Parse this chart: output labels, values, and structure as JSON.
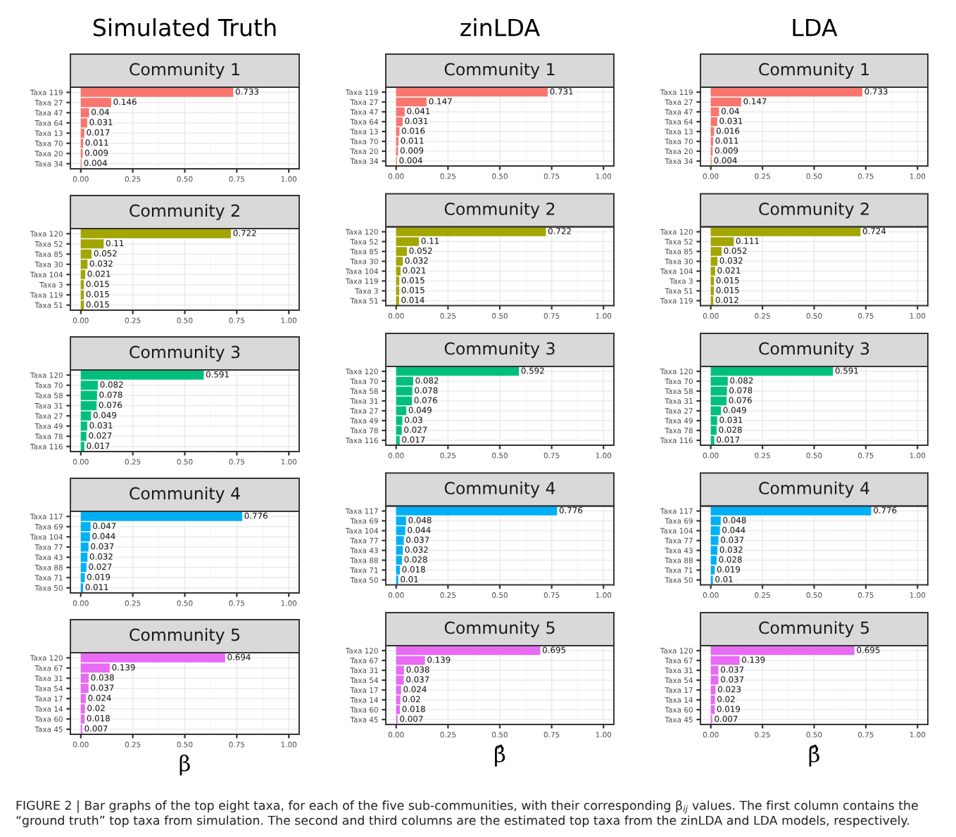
{
  "chart_data": [
    {
      "type": "bar",
      "orientation": "horizontal",
      "subtitle": "Simulated Truth",
      "title": "Community 1",
      "categories": [
        "Taxa 119",
        "Taxa 27",
        "Taxa 47",
        "Taxa 64",
        "Taxa 13",
        "Taxa 70",
        "Taxa 20",
        "Taxa 34"
      ],
      "values": [
        0.733,
        0.146,
        0.04,
        0.031,
        0.017,
        0.011,
        0.009,
        0.004
      ],
      "color": "#f8766d",
      "data_labels": true,
      "xlim": [
        -0.05,
        1.05
      ],
      "xticks": [
        {
          "value": 0,
          "label": "0.00"
        },
        {
          "value": 0.25,
          "label": "0.25"
        },
        {
          "value": 0.5,
          "label": "0.50"
        },
        {
          "value": 0.75,
          "label": "0.75"
        },
        {
          "value": 1,
          "label": "1.00"
        }
      ],
      "grid": true
    },
    {
      "type": "bar",
      "orientation": "horizontal",
      "subtitle": "zinLDA",
      "title": "Community 1",
      "categories": [
        "Taxa 119",
        "Taxa 27",
        "Taxa 47",
        "Taxa 64",
        "Taxa 13",
        "Taxa 70",
        "Taxa 20",
        "Taxa 34"
      ],
      "values": [
        0.731,
        0.147,
        0.041,
        0.031,
        0.016,
        0.011,
        0.009,
        0.004
      ],
      "color": "#f8766d",
      "data_labels": true,
      "xlim": [
        -0.05,
        1.05
      ],
      "xticks": [
        {
          "value": 0,
          "label": "0.00"
        },
        {
          "value": 0.25,
          "label": "0.25"
        },
        {
          "value": 0.5,
          "label": "0.50"
        },
        {
          "value": 0.75,
          "label": "0.75"
        },
        {
          "value": 1,
          "label": "1.00"
        }
      ],
      "grid": true
    },
    {
      "type": "bar",
      "orientation": "horizontal",
      "subtitle": "LDA",
      "title": "Community 1",
      "categories": [
        "Taxa 119",
        "Taxa 27",
        "Taxa 47",
        "Taxa 64",
        "Taxa 13",
        "Taxa 70",
        "Taxa 20",
        "Taxa 34"
      ],
      "values": [
        0.733,
        0.147,
        0.04,
        0.031,
        0.016,
        0.011,
        0.009,
        0.004
      ],
      "color": "#f8766d",
      "data_labels": true,
      "xlim": [
        -0.05,
        1.05
      ],
      "xticks": [
        {
          "value": 0,
          "label": "0.00"
        },
        {
          "value": 0.25,
          "label": "0.25"
        },
        {
          "value": 0.5,
          "label": "0.50"
        },
        {
          "value": 0.75,
          "label": "0.75"
        },
        {
          "value": 1,
          "label": "1.00"
        }
      ],
      "grid": true
    },
    {
      "type": "bar",
      "orientation": "horizontal",
      "title": "Community 2",
      "categories": [
        "Taxa 120",
        "Taxa 52",
        "Taxa 85",
        "Taxa 30",
        "Taxa 104",
        "Taxa 3",
        "Taxa 119",
        "Taxa 51"
      ],
      "values": [
        0.722,
        0.11,
        0.052,
        0.032,
        0.021,
        0.015,
        0.015,
        0.015
      ],
      "color": "#a3a500",
      "data_labels": true,
      "xlim": [
        -0.05,
        1.05
      ],
      "xticks": [
        {
          "value": 0,
          "label": "0.00"
        },
        {
          "value": 0.25,
          "label": "0.25"
        },
        {
          "value": 0.5,
          "label": "0.50"
        },
        {
          "value": 0.75,
          "label": "0.75"
        },
        {
          "value": 1,
          "label": "1.00"
        }
      ],
      "grid": true
    },
    {
      "type": "bar",
      "orientation": "horizontal",
      "title": "Community 2",
      "categories": [
        "Taxa 120",
        "Taxa 52",
        "Taxa 85",
        "Taxa 30",
        "Taxa 104",
        "Taxa 119",
        "Taxa 3",
        "Taxa 51"
      ],
      "values": [
        0.722,
        0.11,
        0.052,
        0.032,
        0.021,
        0.015,
        0.015,
        0.014
      ],
      "color": "#a3a500",
      "data_labels": true,
      "xlim": [
        -0.05,
        1.05
      ],
      "xticks": [
        {
          "value": 0,
          "label": "0.00"
        },
        {
          "value": 0.25,
          "label": "0.25"
        },
        {
          "value": 0.5,
          "label": "0.50"
        },
        {
          "value": 0.75,
          "label": "0.75"
        },
        {
          "value": 1,
          "label": "1.00"
        }
      ],
      "grid": true
    },
    {
      "type": "bar",
      "orientation": "horizontal",
      "title": "Community 2",
      "categories": [
        "Taxa 120",
        "Taxa 52",
        "Taxa 85",
        "Taxa 30",
        "Taxa 104",
        "Taxa 3",
        "Taxa 51",
        "Taxa 119"
      ],
      "values": [
        0.724,
        0.111,
        0.052,
        0.032,
        0.021,
        0.015,
        0.015,
        0.012
      ],
      "color": "#a3a500",
      "data_labels": true,
      "xlim": [
        -0.05,
        1.05
      ],
      "xticks": [
        {
          "value": 0,
          "label": "0.00"
        },
        {
          "value": 0.25,
          "label": "0.25"
        },
        {
          "value": 0.5,
          "label": "0.50"
        },
        {
          "value": 0.75,
          "label": "0.75"
        },
        {
          "value": 1,
          "label": "1.00"
        }
      ],
      "grid": true
    },
    {
      "type": "bar",
      "orientation": "horizontal",
      "title": "Community 3",
      "categories": [
        "Taxa 120",
        "Taxa 70",
        "Taxa 58",
        "Taxa 31",
        "Taxa 27",
        "Taxa 49",
        "Taxa 78",
        "Taxa 116"
      ],
      "values": [
        0.591,
        0.082,
        0.078,
        0.076,
        0.049,
        0.031,
        0.027,
        0.017
      ],
      "color": "#00bf7d",
      "data_labels": true,
      "xlim": [
        -0.05,
        1.05
      ],
      "xticks": [
        {
          "value": 0,
          "label": "0.00"
        },
        {
          "value": 0.25,
          "label": "0.25"
        },
        {
          "value": 0.5,
          "label": "0.50"
        },
        {
          "value": 0.75,
          "label": "0.75"
        },
        {
          "value": 1,
          "label": "1.00"
        }
      ],
      "grid": true
    },
    {
      "type": "bar",
      "orientation": "horizontal",
      "title": "Community 3",
      "categories": [
        "Taxa 120",
        "Taxa 70",
        "Taxa 58",
        "Taxa 31",
        "Taxa 27",
        "Taxa 49",
        "Taxa 78",
        "Taxa 116"
      ],
      "values": [
        0.592,
        0.082,
        0.078,
        0.076,
        0.049,
        0.03,
        0.027,
        0.017
      ],
      "color": "#00bf7d",
      "data_labels": true,
      "xlim": [
        -0.05,
        1.05
      ],
      "xticks": [
        {
          "value": 0,
          "label": "0.00"
        },
        {
          "value": 0.25,
          "label": "0.25"
        },
        {
          "value": 0.5,
          "label": "0.50"
        },
        {
          "value": 0.75,
          "label": "0.75"
        },
        {
          "value": 1,
          "label": "1.00"
        }
      ],
      "grid": true
    },
    {
      "type": "bar",
      "orientation": "horizontal",
      "title": "Community 3",
      "categories": [
        "Taxa 120",
        "Taxa 70",
        "Taxa 58",
        "Taxa 31",
        "Taxa 27",
        "Taxa 49",
        "Taxa 78",
        "Taxa 116"
      ],
      "values": [
        0.591,
        0.082,
        0.078,
        0.076,
        0.049,
        0.031,
        0.028,
        0.017
      ],
      "color": "#00bf7d",
      "data_labels": true,
      "xlim": [
        -0.05,
        1.05
      ],
      "xticks": [
        {
          "value": 0,
          "label": "0.00"
        },
        {
          "value": 0.25,
          "label": "0.25"
        },
        {
          "value": 0.5,
          "label": "0.50"
        },
        {
          "value": 0.75,
          "label": "0.75"
        },
        {
          "value": 1,
          "label": "1.00"
        }
      ],
      "grid": true
    },
    {
      "type": "bar",
      "orientation": "horizontal",
      "title": "Community 4",
      "categories": [
        "Taxa 117",
        "Taxa 69",
        "Taxa 104",
        "Taxa 77",
        "Taxa 43",
        "Taxa 88",
        "Taxa 71",
        "Taxa 50"
      ],
      "values": [
        0.776,
        0.047,
        0.044,
        0.037,
        0.032,
        0.027,
        0.019,
        0.011
      ],
      "color": "#00b0f6",
      "data_labels": true,
      "xlim": [
        -0.05,
        1.05
      ],
      "xticks": [
        {
          "value": 0,
          "label": "0.00"
        },
        {
          "value": 0.25,
          "label": "0.25"
        },
        {
          "value": 0.5,
          "label": "0.50"
        },
        {
          "value": 0.75,
          "label": "0.75"
        },
        {
          "value": 1,
          "label": "1.00"
        }
      ],
      "grid": true
    },
    {
      "type": "bar",
      "orientation": "horizontal",
      "title": "Community 4",
      "categories": [
        "Taxa 117",
        "Taxa 69",
        "Taxa 104",
        "Taxa 77",
        "Taxa 43",
        "Taxa 88",
        "Taxa 71",
        "Taxa 50"
      ],
      "values": [
        0.776,
        0.048,
        0.044,
        0.037,
        0.032,
        0.028,
        0.018,
        0.01
      ],
      "color": "#00b0f6",
      "data_labels": true,
      "xlim": [
        -0.05,
        1.05
      ],
      "xticks": [
        {
          "value": 0,
          "label": "0.00"
        },
        {
          "value": 0.25,
          "label": "0.25"
        },
        {
          "value": 0.5,
          "label": "0.50"
        },
        {
          "value": 0.75,
          "label": "0.75"
        },
        {
          "value": 1,
          "label": "1.00"
        }
      ],
      "grid": true
    },
    {
      "type": "bar",
      "orientation": "horizontal",
      "title": "Community 4",
      "categories": [
        "Taxa 117",
        "Taxa 69",
        "Taxa 104",
        "Taxa 77",
        "Taxa 43",
        "Taxa 88",
        "Taxa 71",
        "Taxa 50"
      ],
      "values": [
        0.776,
        0.048,
        0.044,
        0.037,
        0.032,
        0.028,
        0.019,
        0.01
      ],
      "color": "#00b0f6",
      "data_labels": true,
      "xlim": [
        -0.05,
        1.05
      ],
      "xticks": [
        {
          "value": 0,
          "label": "0.00"
        },
        {
          "value": 0.25,
          "label": "0.25"
        },
        {
          "value": 0.5,
          "label": "0.50"
        },
        {
          "value": 0.75,
          "label": "0.75"
        },
        {
          "value": 1,
          "label": "1.00"
        }
      ],
      "grid": true
    },
    {
      "type": "bar",
      "orientation": "horizontal",
      "title": "Community 5",
      "xlabel": "β",
      "categories": [
        "Taxa 120",
        "Taxa 67",
        "Taxa 31",
        "Taxa 54",
        "Taxa 17",
        "Taxa 14",
        "Taxa 60",
        "Taxa 45"
      ],
      "values": [
        0.694,
        0.139,
        0.038,
        0.037,
        0.024,
        0.02,
        0.018,
        0.007
      ],
      "color": "#e76bf3",
      "data_labels": true,
      "xlim": [
        -0.05,
        1.05
      ],
      "xticks": [
        {
          "value": 0,
          "label": "0.00"
        },
        {
          "value": 0.25,
          "label": "0.25"
        },
        {
          "value": 0.5,
          "label": "0.50"
        },
        {
          "value": 0.75,
          "label": "0.75"
        },
        {
          "value": 1,
          "label": "1.00"
        }
      ],
      "grid": true
    },
    {
      "type": "bar",
      "orientation": "horizontal",
      "title": "Community 5",
      "xlabel": "β̂",
      "categories": [
        "Taxa 120",
        "Taxa 67",
        "Taxa 31",
        "Taxa 54",
        "Taxa 17",
        "Taxa 14",
        "Taxa 60",
        "Taxa 45"
      ],
      "values": [
        0.695,
        0.139,
        0.038,
        0.037,
        0.024,
        0.02,
        0.018,
        0.007
      ],
      "color": "#e76bf3",
      "data_labels": true,
      "xlim": [
        -0.05,
        1.05
      ],
      "xticks": [
        {
          "value": 0,
          "label": "0.00"
        },
        {
          "value": 0.25,
          "label": "0.25"
        },
        {
          "value": 0.5,
          "label": "0.50"
        },
        {
          "value": 0.75,
          "label": "0.75"
        },
        {
          "value": 1,
          "label": "1.00"
        }
      ],
      "grid": true
    },
    {
      "type": "bar",
      "orientation": "horizontal",
      "title": "Community 5",
      "xlabel": "β̂",
      "categories": [
        "Taxa 120",
        "Taxa 67",
        "Taxa 31",
        "Taxa 54",
        "Taxa 17",
        "Taxa 14",
        "Taxa 60",
        "Taxa 45"
      ],
      "values": [
        0.695,
        0.139,
        0.037,
        0.037,
        0.023,
        0.02,
        0.019,
        0.007
      ],
      "color": "#e76bf3",
      "data_labels": true,
      "xlim": [
        -0.05,
        1.05
      ],
      "xticks": [
        {
          "value": 0,
          "label": "0.00"
        },
        {
          "value": 0.25,
          "label": "0.25"
        },
        {
          "value": 0.5,
          "label": "0.50"
        },
        {
          "value": 0.75,
          "label": "0.75"
        },
        {
          "value": 1,
          "label": "1.00"
        }
      ],
      "grid": true,
      "annotations": [
        "FIGURE 2 | Bar graphs of the top eight taxa, for each of the five sub-communities, with their corresponding β$_{ij}$ values. The first column contains the “ground truth” top taxa from simulation. The second and third columns are the estimated top taxa from the zinLDA and LDA models, respectively."
      ]
    }
  ]
}
